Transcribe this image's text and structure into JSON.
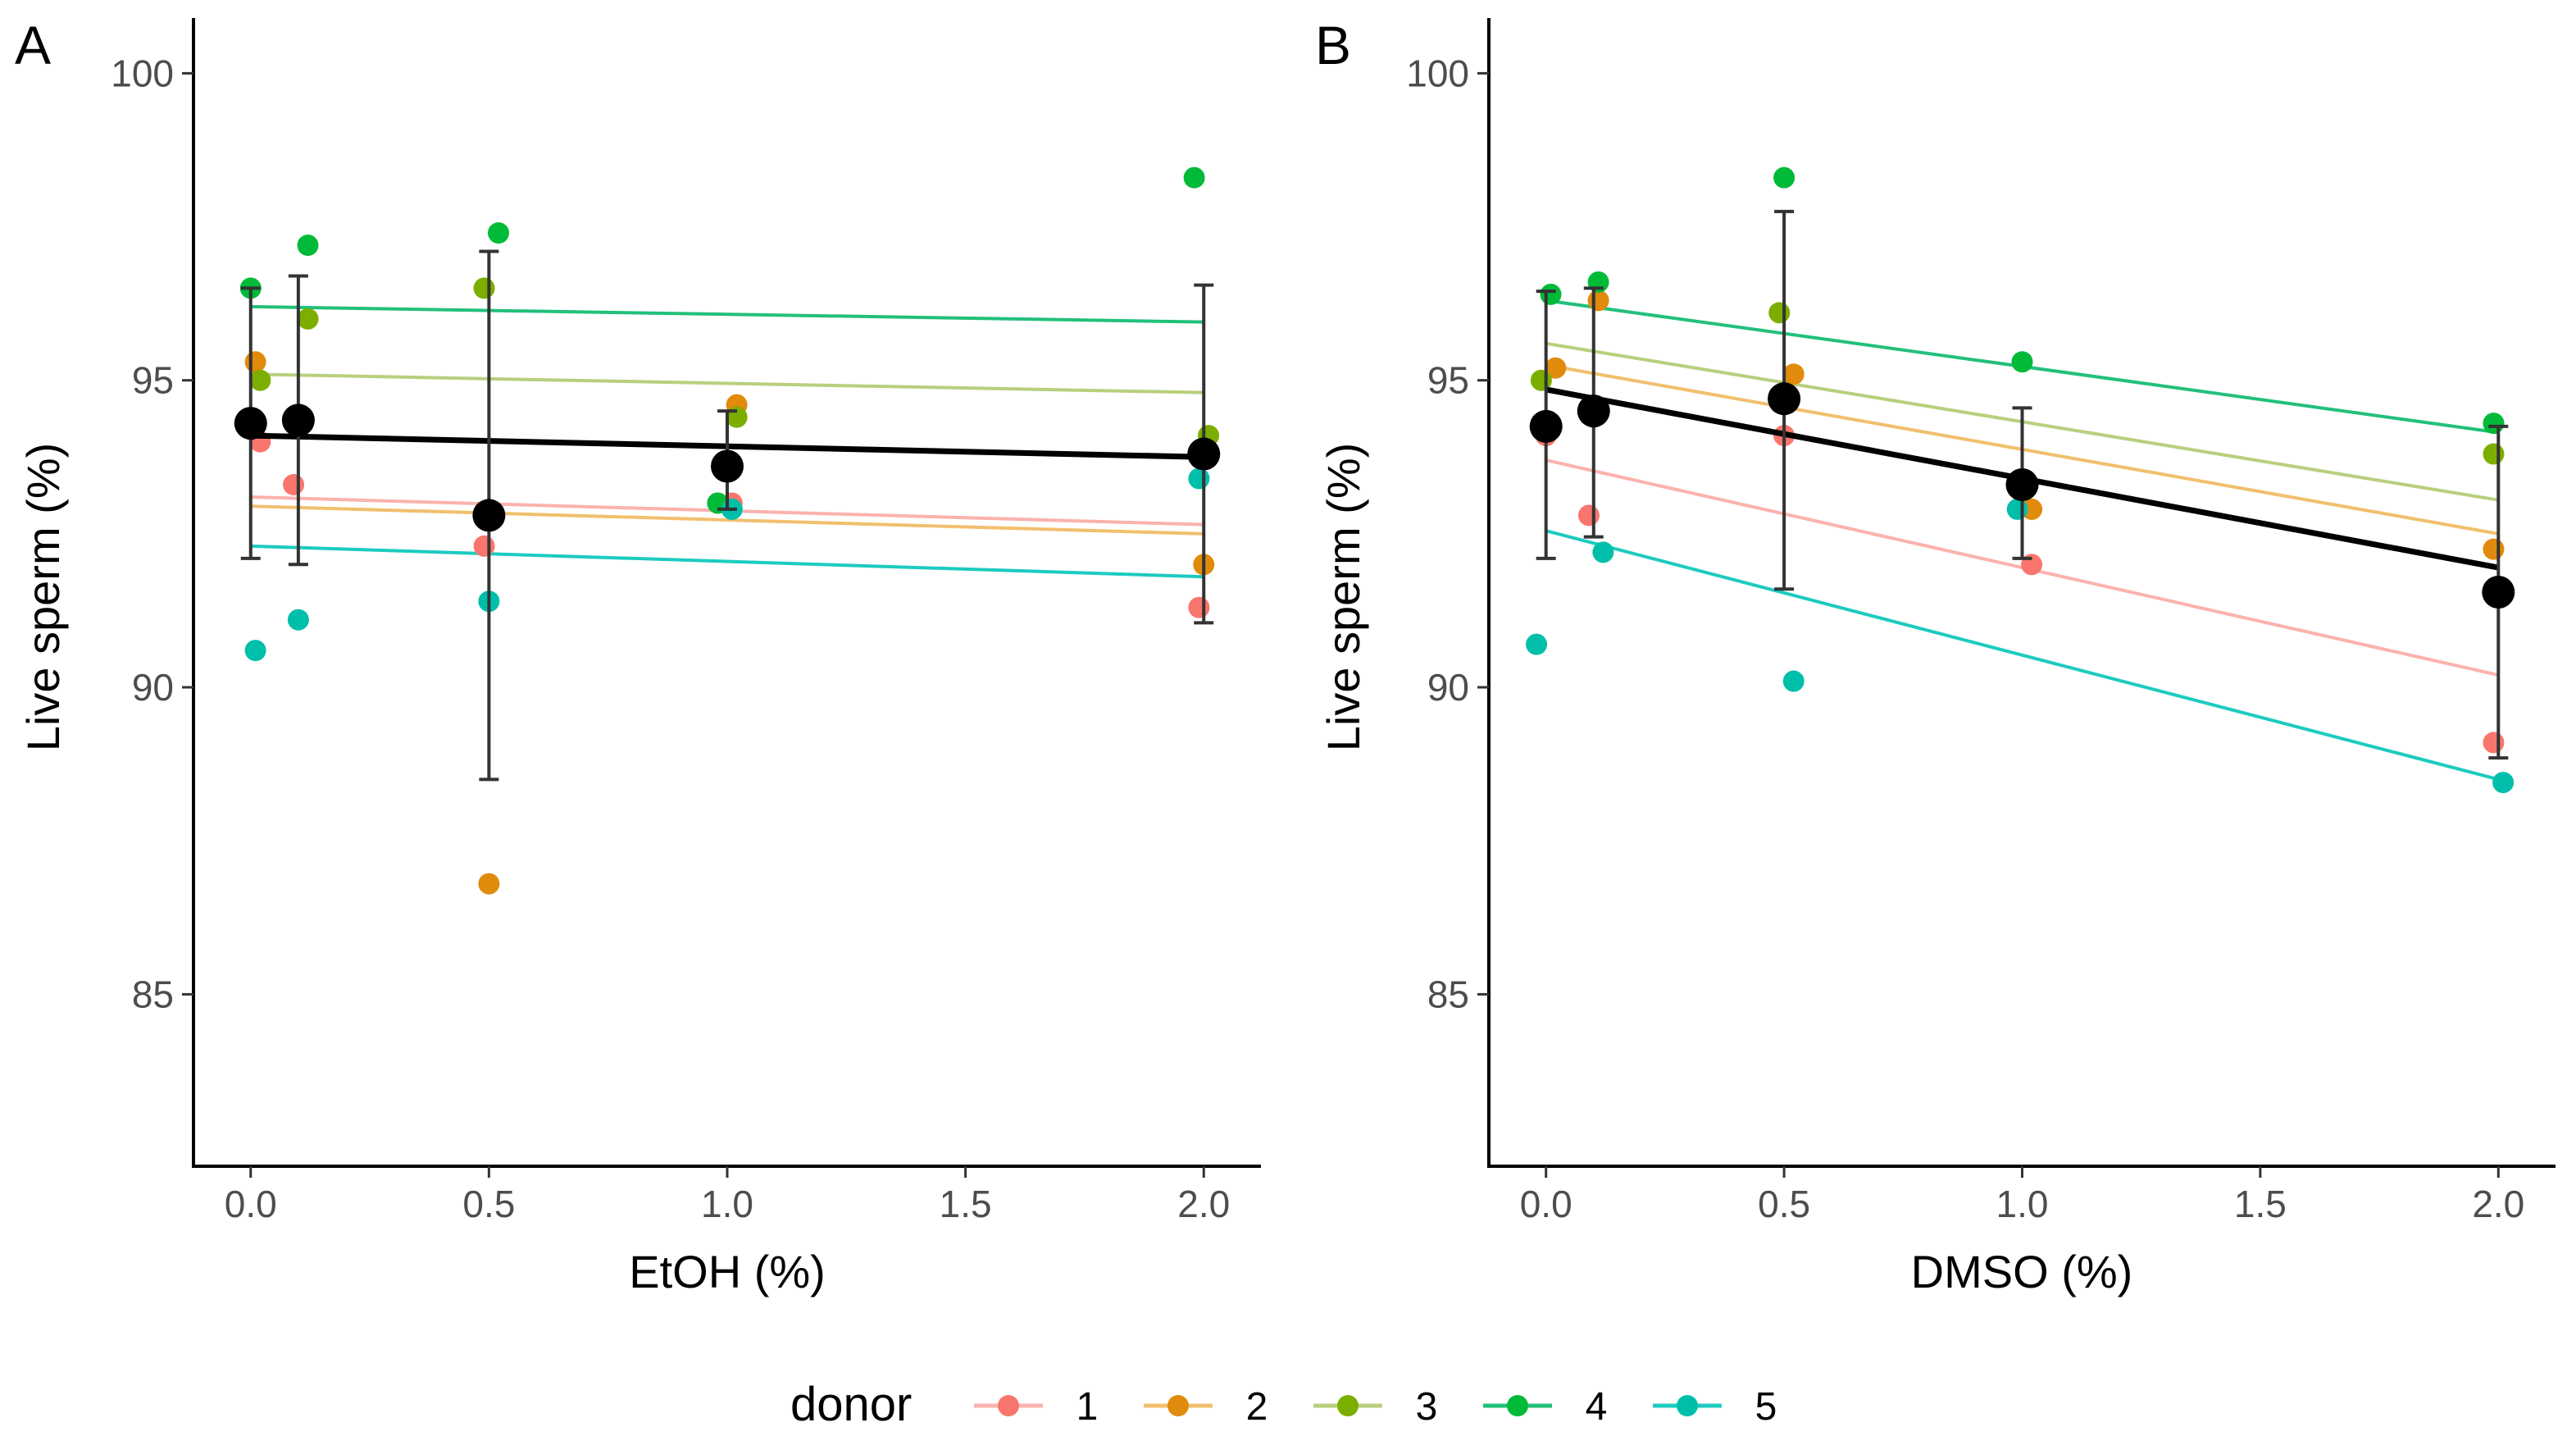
{
  "chart_data": [
    {
      "panel": "A",
      "type": "scatter",
      "xlabel": "EtOH (%)",
      "ylabel": "Live sperm (%)",
      "xlim": [
        -0.12,
        2.12
      ],
      "ylim": [
        82.2,
        100.9
      ],
      "xticks": [
        0.0,
        0.5,
        1.0,
        1.5,
        2.0
      ],
      "xtick_labels": [
        "0.0",
        "0.5",
        "1.0",
        "1.5",
        "2.0"
      ],
      "yticks": [
        85,
        90,
        95,
        100
      ],
      "ytick_labels": [
        "85",
        "90",
        "95",
        "100"
      ],
      "points": [
        {
          "donor": "1",
          "x": 0.02,
          "y": 94.0
        },
        {
          "donor": "2",
          "x": 0.01,
          "y": 95.3
        },
        {
          "donor": "3",
          "x": 0.02,
          "y": 95.0
        },
        {
          "donor": "4",
          "x": 0.0,
          "y": 96.5
        },
        {
          "donor": "5",
          "x": 0.01,
          "y": 90.6
        },
        {
          "donor": "1",
          "x": 0.09,
          "y": 93.3
        },
        {
          "donor": "2",
          "x": 0.11,
          "y": 94.3
        },
        {
          "donor": "3",
          "x": 0.12,
          "y": 96.0
        },
        {
          "donor": "4",
          "x": 0.12,
          "y": 97.2
        },
        {
          "donor": "5",
          "x": 0.1,
          "y": 91.1
        },
        {
          "donor": "1",
          "x": 0.49,
          "y": 92.3
        },
        {
          "donor": "2",
          "x": 0.5,
          "y": 86.8
        },
        {
          "donor": "3",
          "x": 0.49,
          "y": 96.5
        },
        {
          "donor": "4",
          "x": 0.52,
          "y": 97.4
        },
        {
          "donor": "5",
          "x": 0.5,
          "y": 91.4
        },
        {
          "donor": "1",
          "x": 1.01,
          "y": 93.0
        },
        {
          "donor": "2",
          "x": 1.02,
          "y": 94.6
        },
        {
          "donor": "3",
          "x": 1.02,
          "y": 94.4
        },
        {
          "donor": "4",
          "x": 0.98,
          "y": 93.0
        },
        {
          "donor": "5",
          "x": 1.01,
          "y": 92.9
        },
        {
          "donor": "1",
          "x": 1.99,
          "y": 91.3
        },
        {
          "donor": "2",
          "x": 2.0,
          "y": 92.0
        },
        {
          "donor": "3",
          "x": 2.01,
          "y": 94.1
        },
        {
          "donor": "4",
          "x": 1.98,
          "y": 98.3
        },
        {
          "donor": "5",
          "x": 1.99,
          "y": 93.4
        }
      ],
      "fit_lines": [
        {
          "donor": "1",
          "x": [
            0.0,
            2.0
          ],
          "y": [
            93.1,
            92.65
          ]
        },
        {
          "donor": "2",
          "x": [
            0.0,
            2.0
          ],
          "y": [
            92.95,
            92.5
          ]
        },
        {
          "donor": "3",
          "x": [
            0.0,
            2.0
          ],
          "y": [
            95.1,
            94.8
          ]
        },
        {
          "donor": "4",
          "x": [
            0.0,
            2.0
          ],
          "y": [
            96.2,
            95.95
          ]
        },
        {
          "donor": "5",
          "x": [
            0.0,
            2.0
          ],
          "y": [
            92.3,
            91.8
          ]
        }
      ],
      "overall_fit": {
        "x": [
          0.0,
          2.0
        ],
        "y": [
          94.1,
          93.75
        ]
      },
      "means": [
        {
          "x": 0.0,
          "y": 94.3,
          "lower": 92.1,
          "upper": 96.5
        },
        {
          "x": 0.1,
          "y": 94.35,
          "lower": 92.0,
          "upper": 96.7
        },
        {
          "x": 0.5,
          "y": 92.8,
          "lower": 88.5,
          "upper": 97.1
        },
        {
          "x": 1.0,
          "y": 93.6,
          "lower": 92.9,
          "upper": 94.5
        },
        {
          "x": 2.0,
          "y": 93.8,
          "lower": 91.05,
          "upper": 96.55
        }
      ]
    },
    {
      "panel": "B",
      "type": "scatter",
      "xlabel": "DMSO (%)",
      "ylabel": "Live sperm (%)",
      "xlim": [
        -0.12,
        2.12
      ],
      "ylim": [
        82.2,
        100.9
      ],
      "xticks": [
        0.0,
        0.5,
        1.0,
        1.5,
        2.0
      ],
      "xtick_labels": [
        "0.0",
        "0.5",
        "1.0",
        "1.5",
        "2.0"
      ],
      "yticks": [
        85,
        90,
        95,
        100
      ],
      "ytick_labels": [
        "85",
        "90",
        "95",
        "100"
      ],
      "points": [
        {
          "donor": "1",
          "x": 0.0,
          "y": 94.1
        },
        {
          "donor": "2",
          "x": 0.02,
          "y": 95.2
        },
        {
          "donor": "3",
          "x": -0.01,
          "y": 95.0
        },
        {
          "donor": "4",
          "x": 0.01,
          "y": 96.4
        },
        {
          "donor": "5",
          "x": -0.02,
          "y": 90.7
        },
        {
          "donor": "1",
          "x": 0.09,
          "y": 92.8
        },
        {
          "donor": "2",
          "x": 0.11,
          "y": 96.3
        },
        {
          "donor": "3",
          "x": 0.1,
          "y": 94.4
        },
        {
          "donor": "4",
          "x": 0.11,
          "y": 96.6
        },
        {
          "donor": "5",
          "x": 0.12,
          "y": 92.2
        },
        {
          "donor": "1",
          "x": 0.5,
          "y": 94.1
        },
        {
          "donor": "2",
          "x": 0.52,
          "y": 95.1
        },
        {
          "donor": "3",
          "x": 0.49,
          "y": 96.1
        },
        {
          "donor": "4",
          "x": 0.5,
          "y": 98.3
        },
        {
          "donor": "5",
          "x": 0.52,
          "y": 90.1
        },
        {
          "donor": "1",
          "x": 1.02,
          "y": 92.0
        },
        {
          "donor": "2",
          "x": 1.02,
          "y": 92.9
        },
        {
          "donor": "3",
          "x": 1.0,
          "y": 93.3
        },
        {
          "donor": "4",
          "x": 1.0,
          "y": 95.3
        },
        {
          "donor": "5",
          "x": 0.99,
          "y": 92.9
        },
        {
          "donor": "1",
          "x": 1.99,
          "y": 89.1
        },
        {
          "donor": "2",
          "x": 1.99,
          "y": 92.25
        },
        {
          "donor": "3",
          "x": 1.99,
          "y": 93.8
        },
        {
          "donor": "4",
          "x": 1.99,
          "y": 94.3
        },
        {
          "donor": "5",
          "x": 2.01,
          "y": 88.45
        }
      ],
      "fit_lines": [
        {
          "donor": "1",
          "x": [
            0.0,
            2.0
          ],
          "y": [
            93.7,
            90.2
          ]
        },
        {
          "donor": "2",
          "x": [
            0.0,
            2.0
          ],
          "y": [
            95.25,
            92.5
          ]
        },
        {
          "donor": "3",
          "x": [
            0.0,
            2.0
          ],
          "y": [
            95.6,
            93.05
          ]
        },
        {
          "donor": "4",
          "x": [
            0.0,
            2.0
          ],
          "y": [
            96.3,
            94.15
          ]
        },
        {
          "donor": "5",
          "x": [
            0.0,
            2.0
          ],
          "y": [
            92.55,
            88.5
          ]
        }
      ],
      "overall_fit": {
        "x": [
          0.0,
          2.0
        ],
        "y": [
          94.85,
          91.95
        ]
      },
      "means": [
        {
          "x": 0.0,
          "y": 94.25,
          "lower": 92.1,
          "upper": 96.45
        },
        {
          "x": 0.1,
          "y": 94.5,
          "lower": 92.45,
          "upper": 96.5
        },
        {
          "x": 0.5,
          "y": 94.7,
          "lower": 91.6,
          "upper": 97.75
        },
        {
          "x": 1.0,
          "y": 93.3,
          "lower": 92.1,
          "upper": 94.55
        },
        {
          "x": 2.0,
          "y": 91.55,
          "lower": 88.85,
          "upper": 94.25
        }
      ]
    }
  ],
  "legend": {
    "title": "donor",
    "position": "bottom",
    "entries": [
      {
        "label": "1",
        "color": "#F8766D",
        "line_color": "#FBB2AD"
      },
      {
        "label": "2",
        "color": "#E08B0C",
        "line_color": "#F2BF6E"
      },
      {
        "label": "3",
        "color": "#7CAE00",
        "line_color": "#B9CF7E"
      },
      {
        "label": "4",
        "color": "#00BA38",
        "line_color": "#22C07A"
      },
      {
        "label": "5",
        "color": "#00BFAA",
        "line_color": "#1DCBC0"
      }
    ]
  },
  "style": {
    "mean_color": "#000000",
    "errorbar_color": "#333333",
    "axis_color": "#000000"
  }
}
